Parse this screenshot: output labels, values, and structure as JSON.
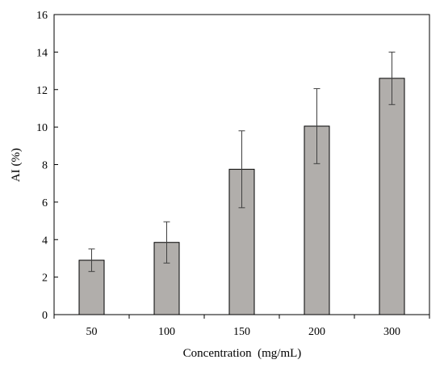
{
  "chart_data": {
    "type": "bar",
    "title": "",
    "xlabel": "Concentration  (mg/mL)",
    "ylabel": "AI (%)",
    "categories": [
      "50",
      "100",
      "150",
      "200",
      "300"
    ],
    "series": [
      {
        "values": [
          2.9,
          3.85,
          7.75,
          10.05,
          12.6
        ],
        "error": [
          0.6,
          1.1,
          2.05,
          2.0,
          1.4
        ]
      }
    ],
    "ylim": [
      0,
      16
    ],
    "yticks": [
      0,
      2,
      4,
      6,
      8,
      10,
      12,
      14,
      16
    ],
    "grid": false,
    "legend": "none",
    "bar_color": "#b1aeab",
    "bar_edge_color": "#000000",
    "error_bar_color": "#404040"
  }
}
